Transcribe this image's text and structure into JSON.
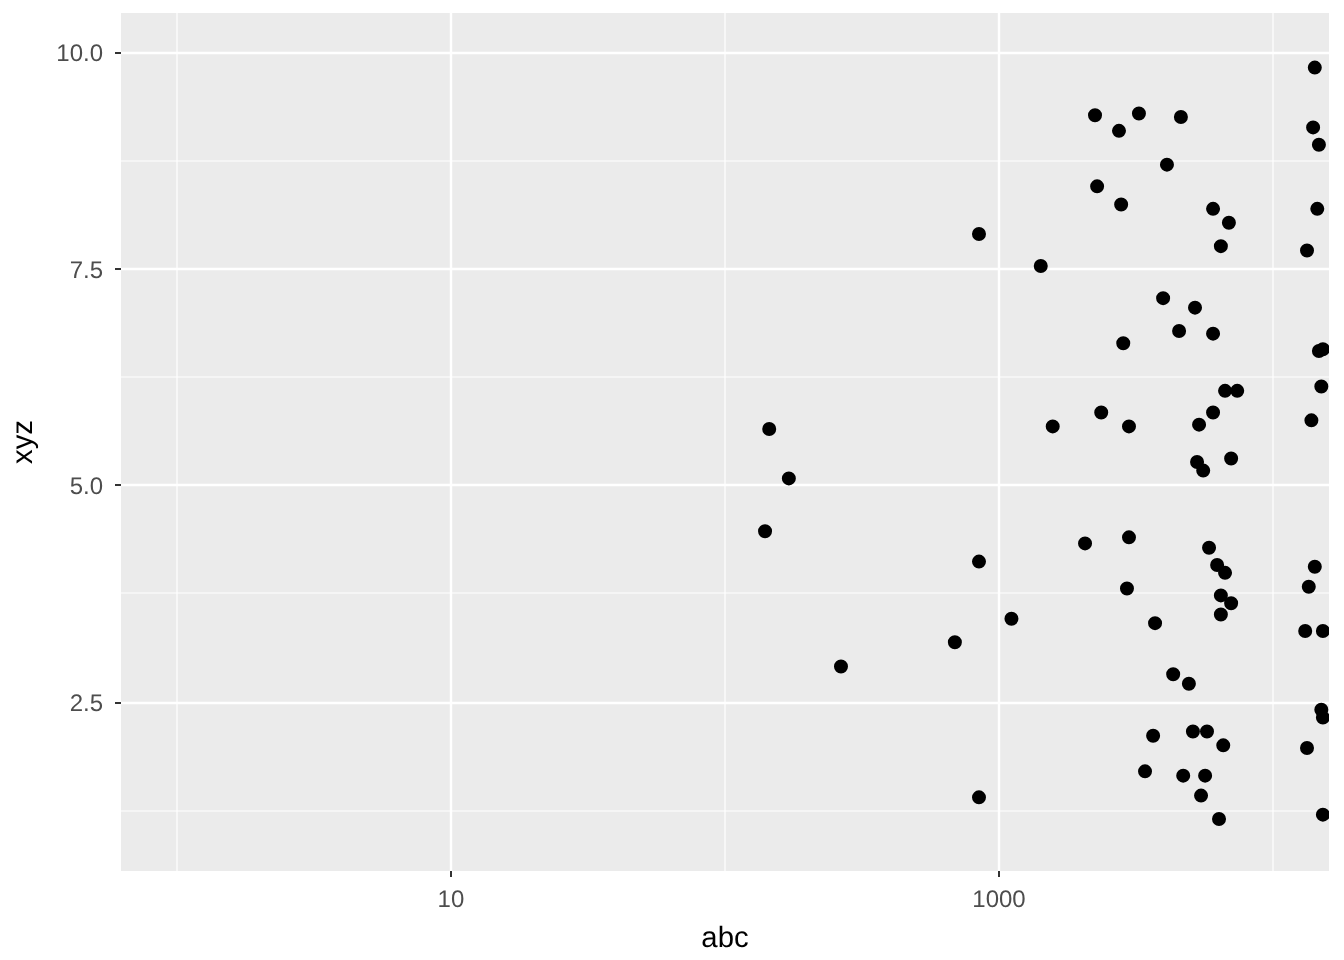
{
  "chart_data": {
    "type": "scatter",
    "xlabel": "abc",
    "ylabel": "xyz",
    "log": "x",
    "grid": true,
    "marker": "circle",
    "xlim": [
      0.625,
      16000
    ],
    "xticks": [
      10,
      1000
    ],
    "ylim": [
      0.55,
      10.45
    ],
    "yticks": [
      {
        "value": 2.5,
        "label": "2.5"
      },
      {
        "value": 5,
        "label": "5.0"
      },
      {
        "value": 7.5,
        "label": "7.5"
      },
      {
        "value": 10,
        "label": "10.0"
      }
    ],
    "series": [
      {
        "color": "#000000",
        "x": [
          14200,
          2240,
          3240,
          2740,
          4610,
          14000,
          14700,
          4100,
          2280,
          2790,
          6040,
          6900,
          14500,
          845,
          1420,
          6450,
          13300,
          3970,
          5190,
          4540,
          6040,
          2840,
          14700,
          15200,
          6680,
          7400,
          15000,
          2360,
          6040,
          145,
          1570,
          2980,
          5370,
          13800,
          7030,
          5280,
          5560,
          171,
          140,
          2980,
          2060,
          5840,
          845,
          14200,
          6250,
          6680,
          13500,
          2930,
          6450,
          7030,
          1110,
          6450,
          3710,
          13100,
          15200,
          690,
          265,
          4320,
          4930,
          15000,
          15200,
          3650,
          5100,
          5740,
          6580,
          13300,
          3410,
          4700,
          5650,
          5460,
          845,
          6350,
          15200
        ],
        "values": [
          9.82,
          9.27,
          9.29,
          9.09,
          9.25,
          9.13,
          8.93,
          8.7,
          8.45,
          8.24,
          8.19,
          8.03,
          8.19,
          7.9,
          7.53,
          7.76,
          7.71,
          7.16,
          7.05,
          6.78,
          6.75,
          6.64,
          6.55,
          6.57,
          6.09,
          6.09,
          6.14,
          5.84,
          5.84,
          5.65,
          5.68,
          5.68,
          5.7,
          5.75,
          5.31,
          5.27,
          5.17,
          5.08,
          4.47,
          4.4,
          4.33,
          4.28,
          4.12,
          4.06,
          4.08,
          3.99,
          3.83,
          3.81,
          3.73,
          3.64,
          3.46,
          3.51,
          3.41,
          3.32,
          3.32,
          3.19,
          2.91,
          2.82,
          2.71,
          2.41,
          2.32,
          2.11,
          2.16,
          2.16,
          2.0,
          1.97,
          1.7,
          1.65,
          1.65,
          1.42,
          1.4,
          1.15,
          1.2
        ]
      }
    ]
  }
}
